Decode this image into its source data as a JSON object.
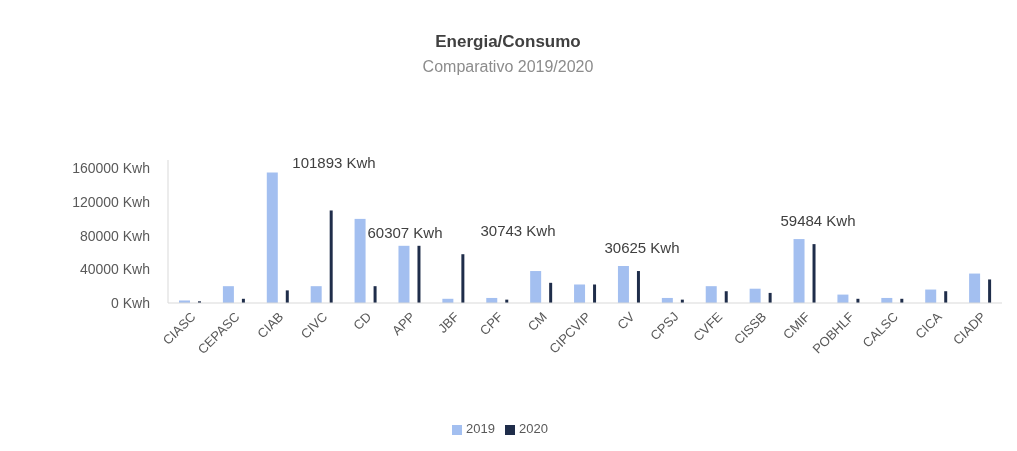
{
  "chart_data": {
    "type": "bar",
    "title": "Energia/Consumo",
    "subtitle": "Comparativo 2019/2020",
    "categories": [
      "CIASC",
      "CEPASC",
      "CIAB",
      "CIVC",
      "CD",
      "APP",
      "JBF",
      "CPF",
      "CM",
      "CIPCVIP",
      "CV",
      "CPSJ",
      "CVFE",
      "CISSB",
      "CMIF",
      "POBHLF",
      "CALSC",
      "CICA",
      "CIADP"
    ],
    "series": [
      {
        "name": "2019",
        "color": "#a3bff0",
        "values": [
          3000,
          20000,
          155000,
          20000,
          100000,
          68000,
          5000,
          6000,
          38000,
          22000,
          44000,
          6000,
          20000,
          17000,
          76000,
          10000,
          6000,
          16000,
          35000
        ]
      },
      {
        "name": "2020",
        "color": "#1f2d4a",
        "values": [
          2000,
          5000,
          15000,
          110000,
          20000,
          68000,
          58000,
          4000,
          24000,
          22000,
          38000,
          4000,
          14000,
          12000,
          70000,
          5000,
          5000,
          14000,
          28000
        ]
      }
    ],
    "ylim": [
      0,
      170000
    ],
    "yticks": [
      {
        "value": 0,
        "label": "0 Kwh"
      },
      {
        "value": 40000,
        "label": "40000 Kwh"
      },
      {
        "value": 80000,
        "label": "80000 Kwh"
      },
      {
        "value": 120000,
        "label": "120000 Kwh"
      },
      {
        "value": 160000,
        "label": "160000 Kwh"
      }
    ],
    "annotations": [
      "101893 Kwh",
      "60307 Kwh",
      "30743 Kwh",
      "30625 Kwh",
      "59484 Kwh"
    ],
    "legend": "bottom"
  }
}
